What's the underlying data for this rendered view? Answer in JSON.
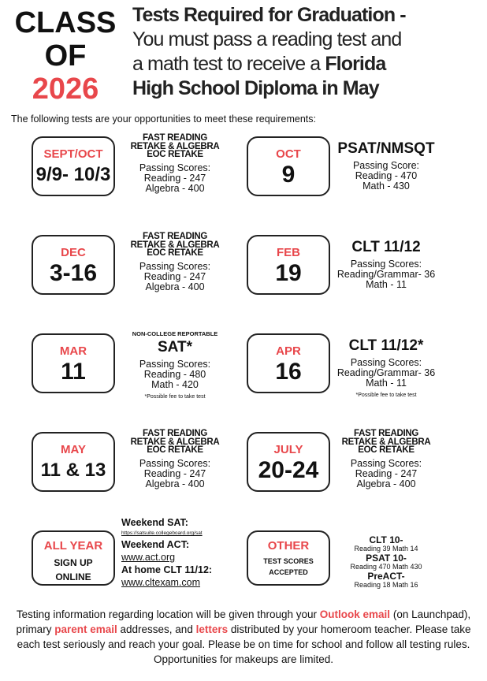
{
  "header": {
    "class_lines": [
      "CLASS",
      "OF",
      "2026"
    ],
    "title": [
      "Tests Required for Graduation -",
      "You must pass a reading test and",
      "a math test to receive a",
      "Florida",
      "High School Diploma in May"
    ]
  },
  "intro": "The following tests are your opportunities to meet these requirements:",
  "tests": [
    {
      "box": {
        "month": "SEPT/OCT",
        "date": "9/9- 10/3"
      },
      "info": {
        "heading": [
          "FAST READING",
          "RETAKE & ALGEBRA",
          "EOC RETAKE"
        ],
        "subheading": "Passing Scores:",
        "scores": [
          "Reading - 247",
          "Algebra - 400"
        ]
      }
    },
    {
      "box": {
        "month": "OCT",
        "date": "9"
      },
      "info": {
        "heading": [
          "PSAT/NMSQT"
        ],
        "subheading": "Passing Score:",
        "scores": [
          "Reading - 470",
          "Math - 430"
        ]
      }
    },
    {
      "box": {
        "month": "DEC",
        "date": "3-16"
      },
      "info": {
        "heading": [
          "FAST READING",
          "RETAKE & ALGEBRA",
          "EOC RETAKE"
        ],
        "subheading": "Passing Scores:",
        "scores": [
          "Reading - 247",
          "Algebra - 400"
        ]
      }
    },
    {
      "box": {
        "month": "FEB",
        "date": "19"
      },
      "info": {
        "heading": [
          "CLT 11/12"
        ],
        "subheading": "Passing Scores:",
        "scores": [
          "Reading/Grammar- 36",
          "Math - 11"
        ]
      }
    },
    {
      "box": {
        "month": "MAR",
        "date": "11"
      },
      "info": {
        "pre": "NON-COLLEGE REPORTABLE",
        "heading": [
          "SAT*"
        ],
        "subheading": "Passing Scores:",
        "scores": [
          "Reading - 480",
          "Math - 420"
        ],
        "note": "*Possible fee to take test"
      }
    },
    {
      "box": {
        "month": "APR",
        "date": "16"
      },
      "info": {
        "heading": [
          "CLT 11/12*"
        ],
        "subheading": "Passing Scores:",
        "scores": [
          "Reading/Grammar- 36",
          "Math - 11"
        ],
        "note": "*Possible fee to take test"
      }
    },
    {
      "box": {
        "month": "MAY",
        "date": "11 & 13"
      },
      "info": {
        "heading": [
          "FAST READING",
          "RETAKE & ALGEBRA",
          "EOC RETAKE"
        ],
        "subheading": "Passing Scores:",
        "scores": [
          "Reading - 247",
          "Algebra - 400"
        ]
      }
    },
    {
      "box": {
        "month": "JULY",
        "date": "20-24"
      },
      "info": {
        "heading": [
          "FAST READING",
          "RETAKE & ALGEBRA",
          "EOC RETAKE"
        ],
        "subheading": "Passing Scores:",
        "scores": [
          "Reading - 247",
          "Algebra - 400"
        ]
      }
    },
    {
      "box": {
        "month": "ALL YEAR",
        "lines": [
          "SIGN UP",
          "ONLINE"
        ]
      },
      "info": {
        "links": [
          {
            "label": "Weekend SAT:",
            "url": "https://satsuite.collegeboard.org/sat"
          },
          {
            "label": "Weekend ACT:",
            "url": "www.act.org"
          },
          {
            "label": "At home CLT 11/12:",
            "url": "www.cltexam.com"
          }
        ]
      }
    },
    {
      "box": {
        "month": "OTHER",
        "lines": [
          "TEST SCORES",
          "ACCEPTED"
        ]
      },
      "info": {
        "items": [
          {
            "name": "CLT 10-",
            "scores": "Reading 39 Math 14"
          },
          {
            "name": "PSAT 10-",
            "scores": "Reading 470 Math 430"
          },
          {
            "name": "PreACT-",
            "scores": "Reading 18 Math 16"
          }
        ]
      }
    }
  ],
  "footer": [
    "Testing information regarding location will be given through your",
    "Outlook email",
    "(on Launchpad), primary",
    "parent email",
    "addresses, and",
    "letters",
    "distributed by your homeroom teacher.  Please take each test seriously and reach your goal.  Please be on time for school and follow all testing rules.  Opportunities for makeups are limited."
  ]
}
